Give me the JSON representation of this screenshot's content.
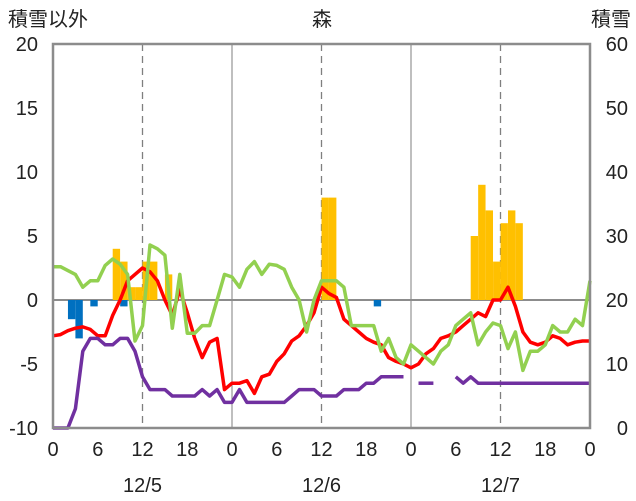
{
  "chart_data": {
    "type": "bar+line",
    "title": "森",
    "left_axis_label": "積雪以外",
    "right_axis_label": "積雪",
    "left_ylim": [
      -10,
      20
    ],
    "left_yticks": [
      "20",
      "15",
      "10",
      "5",
      "0",
      "-5",
      "-10"
    ],
    "right_ylim": [
      0,
      60
    ],
    "right_yticks": [
      "60",
      "50",
      "40",
      "30",
      "20",
      "10",
      "0"
    ],
    "x_hours": [
      0,
      72
    ],
    "x_tick_labels": [
      "0",
      "6",
      "12",
      "18",
      "0",
      "6",
      "12",
      "18",
      "0",
      "6",
      "12",
      "18",
      "0"
    ],
    "date_labels": [
      {
        "hour": 12,
        "text": "12/5"
      },
      {
        "hour": 36,
        "text": "12/6"
      },
      {
        "hour": 60,
        "text": "12/7"
      }
    ],
    "grid": {
      "day_lines": [
        24,
        48
      ],
      "noon_lines": [
        12,
        36,
        60
      ]
    },
    "series": [
      {
        "kind": "bar",
        "axis": "left",
        "color": "#ffc000",
        "points": [
          [
            8.5,
            4
          ],
          [
            9.5,
            3
          ],
          [
            10.5,
            1
          ],
          [
            11.5,
            1
          ],
          [
            12.5,
            3
          ],
          [
            13.5,
            3
          ],
          [
            15.5,
            2
          ],
          [
            36.5,
            8
          ],
          [
            37.5,
            8
          ],
          [
            56.5,
            5
          ],
          [
            57.5,
            9
          ],
          [
            58.5,
            7
          ],
          [
            59.5,
            3
          ],
          [
            60.5,
            6
          ],
          [
            61.5,
            7
          ],
          [
            62.5,
            6
          ]
        ]
      },
      {
        "kind": "bar",
        "axis": "left",
        "color": "#0070c0",
        "points": [
          [
            2.5,
            -1.5
          ],
          [
            3.5,
            -3
          ],
          [
            5.5,
            -0.5
          ],
          [
            9.5,
            -0.5
          ],
          [
            43.5,
            -0.5
          ]
        ]
      },
      {
        "kind": "line",
        "axis": "left",
        "color": "#ff0000",
        "points": [
          [
            0,
            -2.8
          ],
          [
            1,
            -2.7
          ],
          [
            2,
            -2.4
          ],
          [
            3,
            -2.2
          ],
          [
            4,
            -2.1
          ],
          [
            5,
            -2.3
          ],
          [
            6,
            -2.8
          ],
          [
            7,
            -2.8
          ],
          [
            8,
            -1.2
          ],
          [
            9,
            0
          ],
          [
            10,
            1.5
          ],
          [
            11,
            2
          ],
          [
            12,
            2.5
          ],
          [
            13,
            2.2
          ],
          [
            14,
            1.5
          ],
          [
            15,
            0
          ],
          [
            16,
            -1.2
          ],
          [
            17,
            0.8
          ],
          [
            18,
            -1
          ],
          [
            19,
            -3
          ],
          [
            20,
            -4.5
          ],
          [
            21,
            -3.3
          ],
          [
            22,
            -3
          ],
          [
            23,
            -7
          ],
          [
            24,
            -6.5
          ],
          [
            25,
            -6.5
          ],
          [
            26,
            -6.3
          ],
          [
            27,
            -7.3
          ],
          [
            28,
            -6
          ],
          [
            29,
            -5.8
          ],
          [
            30,
            -4.8
          ],
          [
            31,
            -4.2
          ],
          [
            32,
            -3.2
          ],
          [
            33,
            -2.8
          ],
          [
            34,
            -2
          ],
          [
            35,
            -1
          ],
          [
            36,
            1
          ],
          [
            37,
            0.5
          ],
          [
            38,
            0.2
          ],
          [
            39,
            -1.5
          ],
          [
            40,
            -2
          ],
          [
            41,
            -2.5
          ],
          [
            42,
            -3
          ],
          [
            43,
            -3.3
          ],
          [
            44,
            -3.5
          ],
          [
            45,
            -4.5
          ],
          [
            46,
            -4.8
          ],
          [
            47,
            -5
          ],
          [
            48,
            -5.3
          ],
          [
            49,
            -5
          ],
          [
            50,
            -4.2
          ],
          [
            51,
            -3.8
          ],
          [
            52,
            -3
          ],
          [
            53,
            -2.8
          ],
          [
            54,
            -2.5
          ],
          [
            55,
            -2
          ],
          [
            56,
            -1.5
          ],
          [
            57,
            -1
          ],
          [
            58,
            -1.3
          ],
          [
            59,
            0
          ],
          [
            60,
            0
          ],
          [
            61,
            1
          ],
          [
            62,
            -0.5
          ],
          [
            63,
            -2.5
          ],
          [
            64,
            -3.3
          ],
          [
            65,
            -3.5
          ],
          [
            66,
            -3.3
          ],
          [
            67,
            -2.8
          ],
          [
            68,
            -3
          ],
          [
            69,
            -3.5
          ],
          [
            70,
            -3.3
          ],
          [
            71,
            -3.2
          ],
          [
            72,
            -3.2
          ]
        ]
      },
      {
        "kind": "line",
        "axis": "left",
        "color": "#92d050",
        "points": [
          [
            0,
            2.6
          ],
          [
            1,
            2.6
          ],
          [
            2,
            2.3
          ],
          [
            3,
            2
          ],
          [
            4,
            1
          ],
          [
            5,
            1.5
          ],
          [
            6,
            1.5
          ],
          [
            7,
            2.7
          ],
          [
            8,
            3.2
          ],
          [
            9,
            2.8
          ],
          [
            10,
            2
          ],
          [
            11,
            -3.2
          ],
          [
            12,
            -2
          ],
          [
            13,
            4.3
          ],
          [
            14,
            4
          ],
          [
            15,
            3.5
          ],
          [
            16,
            -2.2
          ],
          [
            17,
            2
          ],
          [
            18,
            -2.6
          ],
          [
            19,
            -2.6
          ],
          [
            20,
            -2
          ],
          [
            21,
            -2
          ],
          [
            22,
            0
          ],
          [
            23,
            2
          ],
          [
            24,
            1.8
          ],
          [
            25,
            1
          ],
          [
            26,
            2.4
          ],
          [
            27,
            3
          ],
          [
            28,
            2
          ],
          [
            29,
            2.8
          ],
          [
            30,
            2.7
          ],
          [
            31,
            2.4
          ],
          [
            32,
            1
          ],
          [
            33,
            0
          ],
          [
            34,
            -2.5
          ],
          [
            35,
            0
          ],
          [
            36,
            1.5
          ],
          [
            37,
            1.5
          ],
          [
            38,
            1.5
          ],
          [
            39,
            1
          ],
          [
            40,
            -2
          ],
          [
            41,
            -2
          ],
          [
            42,
            -2
          ],
          [
            43,
            -2
          ],
          [
            44,
            -4
          ],
          [
            45,
            -3
          ],
          [
            46,
            -4.5
          ],
          [
            47,
            -5
          ],
          [
            48,
            -3.5
          ],
          [
            49,
            -4
          ],
          [
            50,
            -4.5
          ],
          [
            51,
            -5
          ],
          [
            52,
            -4
          ],
          [
            53,
            -3.5
          ],
          [
            54,
            -2
          ],
          [
            55,
            -1.5
          ],
          [
            56,
            -1
          ],
          [
            57,
            -3.5
          ],
          [
            58,
            -2.5
          ],
          [
            59,
            -1.8
          ],
          [
            60,
            -2
          ],
          [
            61,
            -3.8
          ],
          [
            62,
            -2.5
          ],
          [
            63,
            -5.5
          ],
          [
            64,
            -4
          ],
          [
            65,
            -4
          ],
          [
            66,
            -3.5
          ],
          [
            67,
            -2
          ],
          [
            68,
            -2.5
          ],
          [
            69,
            -2.5
          ],
          [
            70,
            -1.5
          ],
          [
            71,
            -2
          ],
          [
            72,
            1.5
          ]
        ]
      },
      {
        "kind": "line",
        "axis": "right",
        "color": "#7030a0",
        "segments": [
          [
            [
              0,
              0
            ],
            [
              1,
              0
            ],
            [
              2,
              0
            ],
            [
              3,
              3
            ],
            [
              4,
              12
            ],
            [
              5,
              14
            ],
            [
              6,
              14
            ],
            [
              7,
              13
            ],
            [
              8,
              13
            ],
            [
              9,
              14
            ],
            [
              10,
              14
            ],
            [
              11,
              12
            ],
            [
              12,
              8
            ],
            [
              13,
              6
            ],
            [
              14,
              6
            ],
            [
              15,
              6
            ],
            [
              16,
              5
            ],
            [
              17,
              5
            ],
            [
              18,
              5
            ],
            [
              19,
              5
            ],
            [
              20,
              6
            ],
            [
              21,
              5
            ],
            [
              22,
              6
            ],
            [
              23,
              4
            ],
            [
              24,
              4
            ],
            [
              25,
              6
            ],
            [
              26,
              4
            ],
            [
              27,
              4
            ],
            [
              28,
              4
            ],
            [
              29,
              4
            ],
            [
              30,
              4
            ],
            [
              31,
              4
            ],
            [
              32,
              5
            ],
            [
              33,
              6
            ],
            [
              34,
              6
            ],
            [
              35,
              6
            ],
            [
              36,
              5
            ],
            [
              37,
              5
            ],
            [
              38,
              5
            ],
            [
              39,
              6
            ],
            [
              40,
              6
            ],
            [
              41,
              6
            ],
            [
              42,
              7
            ],
            [
              43,
              7
            ],
            [
              44,
              8
            ],
            [
              45,
              8
            ],
            [
              46,
              8
            ],
            [
              47,
              8
            ]
          ],
          [
            [
              49,
              7
            ],
            [
              50,
              7
            ],
            [
              51,
              7
            ]
          ],
          [
            [
              54,
              8
            ],
            [
              55,
              7
            ],
            [
              56,
              8
            ],
            [
              57,
              7
            ],
            [
              58,
              7
            ],
            [
              59,
              7
            ],
            [
              60,
              7
            ],
            [
              61,
              7
            ],
            [
              62,
              7
            ],
            [
              63,
              7
            ],
            [
              64,
              7
            ],
            [
              65,
              7
            ],
            [
              66,
              7
            ],
            [
              67,
              7
            ],
            [
              68,
              7
            ],
            [
              69,
              7
            ],
            [
              70,
              7
            ],
            [
              71,
              7
            ],
            [
              72,
              7
            ]
          ]
        ]
      }
    ]
  }
}
